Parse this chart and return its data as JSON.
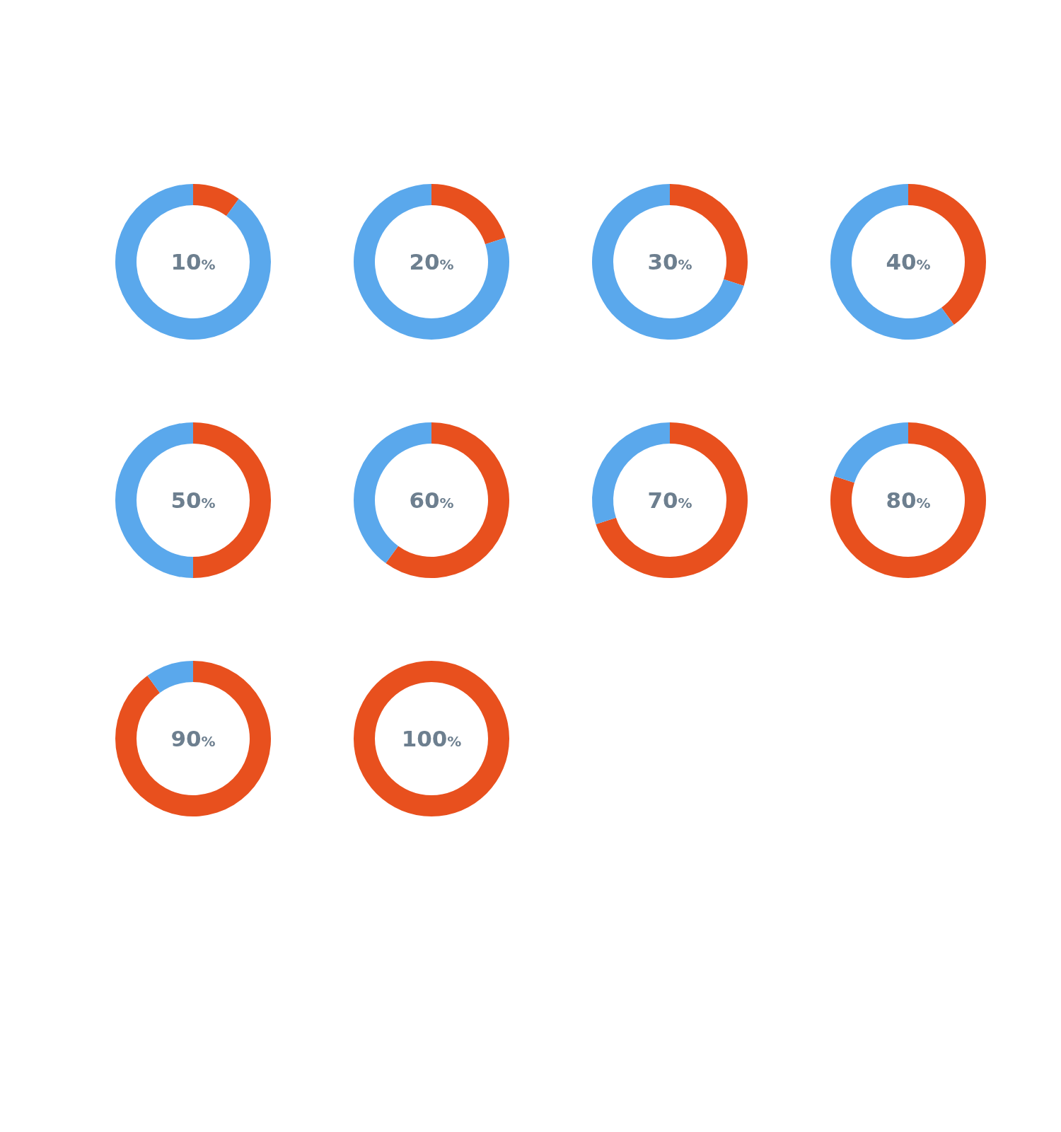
{
  "chart_data": [
    {
      "type": "donut",
      "categories": [
        null,
        null
      ],
      "values": [
        10,
        90
      ],
      "colors": [
        "#e8501e",
        "#5aa8ec"
      ],
      "annotations": [
        "10%"
      ]
    },
    {
      "type": "donut",
      "categories": [
        null,
        null
      ],
      "values": [
        20,
        80
      ],
      "colors": [
        "#e8501e",
        "#5aa8ec"
      ],
      "annotations": [
        "20%"
      ]
    },
    {
      "type": "donut",
      "categories": [
        null,
        null
      ],
      "values": [
        30,
        70
      ],
      "colors": [
        "#e8501e",
        "#5aa8ec"
      ],
      "annotations": [
        "30%"
      ]
    },
    {
      "type": "donut",
      "categories": [
        null,
        null
      ],
      "values": [
        40,
        60
      ],
      "colors": [
        "#e8501e",
        "#5aa8ec"
      ],
      "annotations": [
        "40%"
      ]
    },
    {
      "type": "donut",
      "categories": [
        null,
        null
      ],
      "values": [
        50,
        50
      ],
      "colors": [
        "#e8501e",
        "#5aa8ec"
      ],
      "annotations": [
        "50%"
      ]
    },
    {
      "type": "donut",
      "categories": [
        null,
        null
      ],
      "values": [
        60,
        40
      ],
      "colors": [
        "#e8501e",
        "#5aa8ec"
      ],
      "annotations": [
        "60%"
      ]
    },
    {
      "type": "donut",
      "categories": [
        null,
        null
      ],
      "values": [
        70,
        30
      ],
      "colors": [
        "#e8501e",
        "#5aa8ec"
      ],
      "annotations": [
        "70%"
      ]
    },
    {
      "type": "donut",
      "categories": [
        null,
        null
      ],
      "values": [
        80,
        20
      ],
      "colors": [
        "#e8501e",
        "#5aa8ec"
      ],
      "annotations": [
        "80%"
      ]
    },
    {
      "type": "donut",
      "categories": [
        null,
        null
      ],
      "values": [
        90,
        10
      ],
      "colors": [
        "#e8501e",
        "#5aa8ec"
      ],
      "annotations": [
        "90%"
      ]
    },
    {
      "type": "donut",
      "categories": [
        null,
        null
      ],
      "values": [
        100,
        0
      ],
      "colors": [
        "#e8501e",
        "#5aa8ec"
      ],
      "annotations": [
        "100%"
      ]
    }
  ]
}
